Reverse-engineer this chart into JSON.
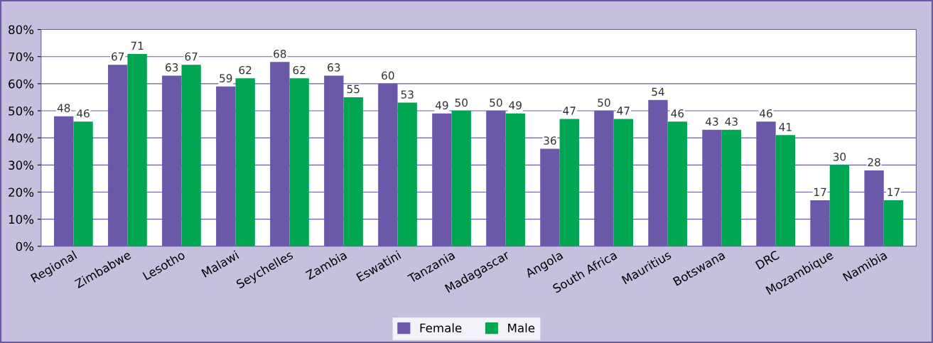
{
  "chart_data": {
    "type": "bar",
    "categories": [
      "Regional",
      "Zimbabwe",
      "Lesotho",
      "Malawi",
      "Seychelles",
      "Zambia",
      "Eswatini",
      "Tanzania",
      "Madagascar",
      "Angola",
      "South Africa",
      "Mauritius",
      "Botswana",
      "DRC",
      "Mozambique",
      "Namibia"
    ],
    "series": [
      {
        "name": "Female",
        "color": "#6b58a8",
        "values": [
          48,
          67,
          63,
          59,
          68,
          63,
          60,
          49,
          50,
          36,
          50,
          54,
          43,
          46,
          17,
          28
        ]
      },
      {
        "name": "Male",
        "color": "#00a651",
        "values": [
          46,
          71,
          67,
          62,
          62,
          55,
          53,
          50,
          49,
          47,
          47,
          46,
          43,
          41,
          30,
          17
        ]
      }
    ],
    "ylim": [
      0,
      80
    ],
    "yticks": [
      {
        "value": 0,
        "label": "0%"
      },
      {
        "value": 10,
        "label": "10%"
      },
      {
        "value": 20,
        "label": "20%"
      },
      {
        "value": 30,
        "label": "30%"
      },
      {
        "value": 40,
        "label": "40%"
      },
      {
        "value": 50,
        "label": "50%"
      },
      {
        "value": 60,
        "label": "60%"
      },
      {
        "value": 70,
        "label": "70%"
      },
      {
        "value": 80,
        "label": "80%"
      }
    ],
    "grid": "y",
    "legend": "bottom",
    "data_labels": true
  }
}
